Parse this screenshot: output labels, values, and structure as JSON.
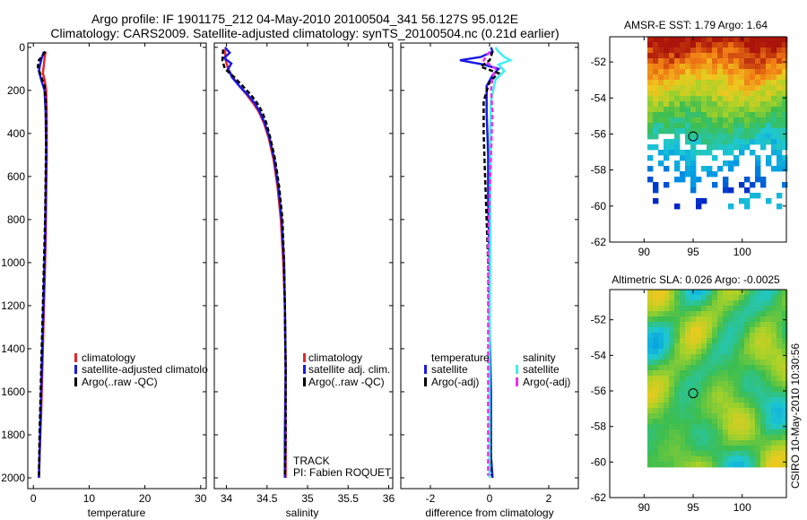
{
  "header": {
    "line1": "Argo profile: IF 1901175_212 04-May-2010 20100504_341 56.127S 95.012E",
    "line2": "Climatology: CARS2009. Satellite-adjusted climatology: synTS_20100504.nc (0.21d earlier)"
  },
  "footer_stamp": "CSIRO 10-May-2010 10:30:56",
  "colors": {
    "red": "#e8262b",
    "blue": "#1a1ae6",
    "black": "#000000",
    "cyan": "#3ff0f0",
    "magenta": "#f02ef0"
  },
  "chart_data": [
    {
      "type": "line",
      "id": "temperature",
      "xlabel": "temperature",
      "xlim": [
        -1,
        31
      ],
      "ylim": [
        2050,
        -20
      ],
      "xticks": [
        0,
        10,
        20,
        30
      ],
      "yticks": [
        0,
        200,
        400,
        600,
        800,
        1000,
        1200,
        1400,
        1600,
        1800,
        2000
      ],
      "series": [
        {
          "name": "climatology",
          "color": "red",
          "dash": "solid",
          "points": [
            [
              2.2,
              20
            ],
            [
              2.0,
              50
            ],
            [
              1.9,
              80
            ],
            [
              1.7,
              120
            ],
            [
              2.0,
              150
            ],
            [
              2.3,
              200
            ],
            [
              2.4,
              300
            ],
            [
              2.4,
              500
            ],
            [
              2.3,
              700
            ],
            [
              2.2,
              900
            ],
            [
              2.0,
              1100
            ],
            [
              1.8,
              1300
            ],
            [
              1.6,
              1500
            ],
            [
              1.4,
              1700
            ],
            [
              1.1,
              1900
            ],
            [
              1.0,
              2000
            ]
          ]
        },
        {
          "name": "satellite-adjusted climatology",
          "color": "blue",
          "dash": "solid",
          "points": [
            [
              1.9,
              20
            ],
            [
              1.5,
              50
            ],
            [
              1.2,
              80
            ],
            [
              1.0,
              110
            ],
            [
              1.4,
              150
            ],
            [
              2.0,
              200
            ],
            [
              2.2,
              300
            ],
            [
              2.3,
              500
            ],
            [
              2.2,
              700
            ],
            [
              2.1,
              900
            ],
            [
              1.9,
              1100
            ],
            [
              1.7,
              1300
            ],
            [
              1.5,
              1500
            ],
            [
              1.3,
              1700
            ],
            [
              1.1,
              1900
            ],
            [
              1.0,
              2000
            ]
          ]
        },
        {
          "name": "Argo(..raw -QC)",
          "color": "black",
          "dash": "dash",
          "points": [
            [
              2.1,
              20
            ],
            [
              1.6,
              40
            ],
            [
              1.0,
              60
            ],
            [
              0.8,
              90
            ],
            [
              1.3,
              130
            ],
            [
              2.0,
              180
            ],
            [
              2.2,
              250
            ],
            [
              2.3,
              400
            ],
            [
              2.2,
              600
            ],
            [
              2.1,
              800
            ],
            [
              1.9,
              1000
            ],
            [
              1.7,
              1200
            ],
            [
              1.5,
              1400
            ],
            [
              1.3,
              1600
            ],
            [
              1.1,
              1800
            ],
            [
              1.0,
              1990
            ]
          ]
        }
      ],
      "legend": {
        "position": "lower-left",
        "entries": [
          "climatology",
          "satellite-adjusted climatolo",
          "Argo(..raw -QC)"
        ]
      },
      "annotations": []
    },
    {
      "type": "line",
      "id": "salinity",
      "xlabel": "salinity",
      "xlim": [
        33.85,
        36.05
      ],
      "ylim": [
        2050,
        -20
      ],
      "xticks": [
        34,
        34.5,
        35,
        35.5,
        36
      ],
      "yticks": [
        0,
        200,
        400,
        600,
        800,
        1000,
        1200,
        1400,
        1600,
        1800,
        2000
      ],
      "series": [
        {
          "name": "climatology",
          "color": "red",
          "dash": "solid",
          "points": [
            [
              33.98,
              10
            ],
            [
              33.99,
              60
            ],
            [
              34.02,
              100
            ],
            [
              34.08,
              140
            ],
            [
              34.16,
              180
            ],
            [
              34.25,
              220
            ],
            [
              34.33,
              260
            ],
            [
              34.4,
              300
            ],
            [
              34.46,
              350
            ],
            [
              34.52,
              420
            ],
            [
              34.58,
              520
            ],
            [
              34.63,
              650
            ],
            [
              34.67,
              800
            ],
            [
              34.7,
              1000
            ],
            [
              34.72,
              1200
            ],
            [
              34.73,
              1500
            ],
            [
              34.73,
              1800
            ],
            [
              34.73,
              2000
            ]
          ]
        },
        {
          "name": "satellite adj. clim.",
          "color": "blue",
          "dash": "solid",
          "points": [
            [
              33.98,
              0
            ],
            [
              34.04,
              25
            ],
            [
              33.97,
              50
            ],
            [
              34.06,
              75
            ],
            [
              34.02,
              100
            ],
            [
              34.07,
              140
            ],
            [
              34.16,
              180
            ],
            [
              34.26,
              220
            ],
            [
              34.35,
              260
            ],
            [
              34.41,
              300
            ],
            [
              34.47,
              350
            ],
            [
              34.53,
              420
            ],
            [
              34.59,
              520
            ],
            [
              34.64,
              650
            ],
            [
              34.68,
              800
            ],
            [
              34.71,
              1000
            ],
            [
              34.72,
              1200
            ],
            [
              34.73,
              1500
            ],
            [
              34.72,
              1800
            ],
            [
              34.72,
              2000
            ]
          ]
        },
        {
          "name": "Argo(..raw -QC)",
          "color": "black",
          "dash": "dash",
          "points": [
            [
              33.96,
              10
            ],
            [
              33.95,
              60
            ],
            [
              33.98,
              100
            ],
            [
              34.1,
              140
            ],
            [
              34.2,
              180
            ],
            [
              34.3,
              220
            ],
            [
              34.38,
              260
            ],
            [
              34.44,
              300
            ],
            [
              34.49,
              350
            ],
            [
              34.54,
              420
            ],
            [
              34.6,
              520
            ],
            [
              34.65,
              650
            ],
            [
              34.69,
              800
            ],
            [
              34.71,
              1000
            ],
            [
              34.72,
              1200
            ],
            [
              34.73,
              1500
            ],
            [
              34.73,
              1800
            ],
            [
              34.72,
              1990
            ]
          ]
        }
      ],
      "legend": {
        "position": "lower-left",
        "entries": [
          "climatology",
          "satellite adj. clim.",
          "Argo(..raw -QC)"
        ]
      },
      "annotations": [
        "TRACK",
        "PI: Fabien ROQUET"
      ]
    },
    {
      "type": "line",
      "id": "difference",
      "xlabel": "difference from climatology",
      "xlim": [
        -3,
        3
      ],
      "ylim": [
        2050,
        -20
      ],
      "xticks": [
        -2,
        0,
        2
      ],
      "yticks": [
        0,
        200,
        400,
        600,
        800,
        1000,
        1200,
        1400,
        1600,
        1800,
        2000
      ],
      "series": [
        {
          "name": "temperature satellite",
          "color": "blue",
          "dash": "solid",
          "points": [
            [
              0.05,
              0
            ],
            [
              0.1,
              20
            ],
            [
              -0.3,
              45
            ],
            [
              -1.0,
              60
            ],
            [
              -0.2,
              80
            ],
            [
              0.3,
              100
            ],
            [
              0.1,
              130
            ],
            [
              -0.1,
              180
            ],
            [
              -0.1,
              300
            ],
            [
              -0.05,
              500
            ],
            [
              -0.05,
              700
            ],
            [
              0.0,
              1000
            ],
            [
              0.0,
              1300
            ],
            [
              0.05,
              1600
            ],
            [
              0.05,
              1900
            ],
            [
              0.1,
              2000
            ]
          ]
        },
        {
          "name": "temperature Argo(-adj)",
          "color": "black",
          "dash": "dash",
          "points": [
            [
              0.1,
              20
            ],
            [
              0.0,
              60
            ],
            [
              -0.3,
              90
            ],
            [
              0.3,
              120
            ],
            [
              0.0,
              160
            ],
            [
              -0.2,
              250
            ],
            [
              -0.2,
              400
            ],
            [
              -0.15,
              600
            ],
            [
              -0.1,
              800
            ],
            [
              -0.05,
              1000
            ],
            [
              0.0,
              1300
            ],
            [
              0.0,
              1600
            ],
            [
              0.05,
              1990
            ]
          ]
        },
        {
          "name": "salinity satellite",
          "color": "cyan",
          "dash": "solid",
          "points": [
            [
              0.2,
              0
            ],
            [
              0.3,
              20
            ],
            [
              0.5,
              45
            ],
            [
              0.7,
              60
            ],
            [
              0.3,
              80
            ],
            [
              0.5,
              110
            ],
            [
              0.2,
              150
            ],
            [
              0.05,
              250
            ],
            [
              0.02,
              400
            ],
            [
              0.02,
              700
            ],
            [
              0.02,
              1000
            ],
            [
              0.0,
              1400
            ],
            [
              0.0,
              1800
            ],
            [
              0.0,
              2000
            ]
          ]
        },
        {
          "name": "salinity Argo(-adj)",
          "color": "magenta",
          "dash": "dash",
          "points": [
            [
              0.0,
              20
            ],
            [
              -0.2,
              60
            ],
            [
              0.2,
              100
            ],
            [
              0.1,
              140
            ],
            [
              0.05,
              200
            ],
            [
              0.1,
              300
            ],
            [
              0.05,
              500
            ],
            [
              0.0,
              700
            ],
            [
              -0.05,
              900
            ],
            [
              -0.05,
              1200
            ],
            [
              -0.05,
              1500
            ],
            [
              -0.05,
              1800
            ],
            [
              -0.05,
              1990
            ]
          ]
        }
      ],
      "legend": {
        "position": "lower-left",
        "headers": [
          "temperature",
          "salinity"
        ],
        "entries": [
          "satellite",
          "Argo(-adj)",
          "satellite",
          "Argo(-adj)"
        ]
      }
    },
    {
      "type": "heatmap",
      "id": "sst-map",
      "title": "AMSR-E SST: 1.79 Argo: 1.64",
      "xlim": [
        86.5,
        104.5
      ],
      "ylim": [
        -62,
        -50.6
      ],
      "xticks": [
        90,
        95,
        100
      ],
      "yticks": [
        -52,
        -54,
        -56,
        -58,
        -60,
        -62
      ],
      "float_position": {
        "lon": 95.0,
        "lat": -56.13
      }
    },
    {
      "type": "heatmap",
      "id": "sla-map",
      "title": "Altimetric SLA: 0.026 Argo: -0.0025",
      "xlim": [
        86.5,
        104.5
      ],
      "ylim": [
        -62,
        -50.3
      ],
      "xticks": [
        90,
        95,
        100
      ],
      "yticks": [
        -52,
        -54,
        -56,
        -58,
        -60,
        -62
      ],
      "float_position": {
        "lon": 95.0,
        "lat": -56.13
      }
    }
  ]
}
